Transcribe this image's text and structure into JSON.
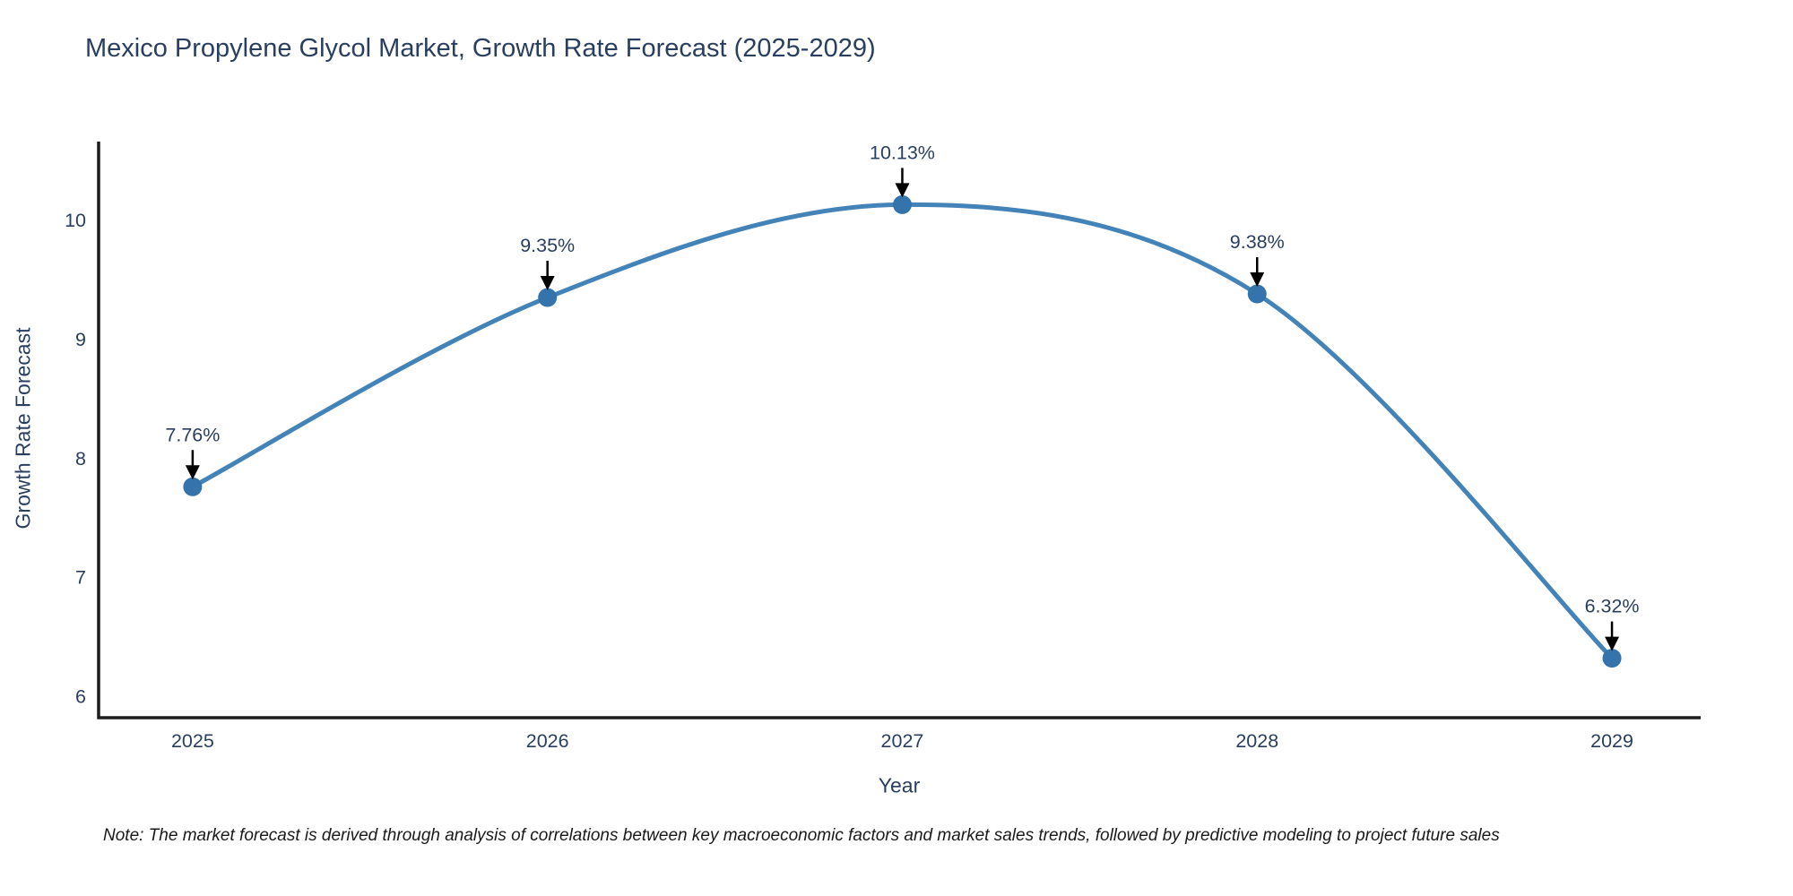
{
  "chart_data": {
    "type": "line",
    "title": "Mexico Propylene Glycol Market, Growth Rate Forecast (2025-2029)",
    "xlabel": "Year",
    "ylabel": "Growth Rate Forecast",
    "x": [
      2025,
      2026,
      2027,
      2028,
      2029
    ],
    "values": [
      7.76,
      9.35,
      10.13,
      9.38,
      6.32
    ],
    "point_labels": [
      "7.76%",
      "9.35%",
      "10.13%",
      "9.38%",
      "6.32%"
    ],
    "xticks": [
      "2025",
      "2026",
      "2027",
      "2028",
      "2029"
    ],
    "yticks": [
      6,
      7,
      8,
      9,
      10
    ],
    "xlim": [
      2024.735,
      2029.25
    ],
    "ylim": [
      5.82,
      10.66
    ],
    "grid": false,
    "legend": "none",
    "line_shape": "spline",
    "colors": {
      "line": "#4483b8",
      "marker": "#3473ac",
      "text": "#2a3f5f",
      "axis": "#1c1c1c",
      "annotation_arrow": "#000000",
      "note_text": "#1a1a1a",
      "background": "#ffffff"
    }
  },
  "note": "Note: The market forecast is derived through analysis of correlations between key macroeconomic factors and market sales trends, followed by predictive modeling to project future sales"
}
